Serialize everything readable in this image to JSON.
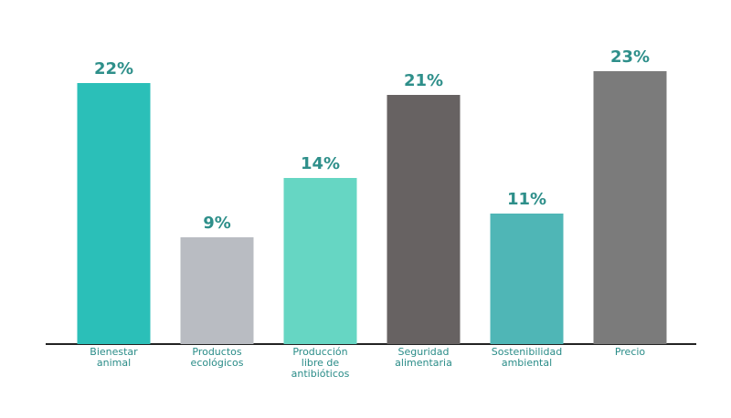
{
  "chart_data": {
    "type": "bar",
    "categories": [
      "Bienestar animal",
      "Productos ecológicos",
      "Producción libre de antibióticos",
      "Seguridad alimentaria",
      "Sostenibilidad ambiental",
      "Precio"
    ],
    "values": [
      22,
      9,
      14,
      21,
      11,
      23
    ],
    "value_labels": [
      "22%",
      "9%",
      "14%",
      "21%",
      "11%",
      "23%"
    ],
    "colors": [
      "#2bbfb8",
      "#b9bcc2",
      "#66d6c3",
      "#676262",
      "#4fb6b6",
      "#7b7b7b"
    ],
    "ylim": [
      0,
      25
    ]
  }
}
